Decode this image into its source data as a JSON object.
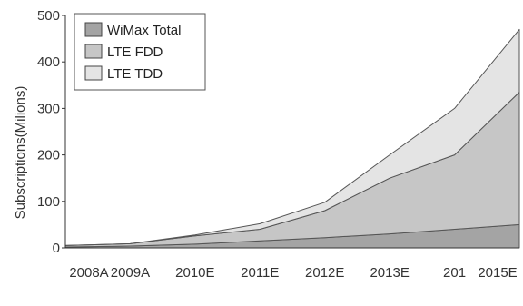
{
  "chart_data": {
    "type": "area",
    "stacked": true,
    "categories": [
      "2008A",
      "2009A",
      "2010E",
      "2011E",
      "2012E",
      "2013E",
      "201",
      "2015E"
    ],
    "series": [
      {
        "name": "WiMax Total",
        "values": [
          2,
          4,
          8,
          15,
          22,
          30,
          40,
          50
        ]
      },
      {
        "name": "LTE FDD",
        "values": [
          3,
          5,
          18,
          25,
          58,
          120,
          160,
          285
        ]
      },
      {
        "name": "LTE TDD",
        "values": [
          0,
          0,
          2,
          12,
          18,
          50,
          100,
          135
        ]
      }
    ],
    "title": "",
    "xlabel": "",
    "ylabel": "Subscriptions(Milions)",
    "ylim": [
      0,
      500
    ],
    "yticks": [
      "0",
      "100",
      "200",
      "300",
      "400",
      "500"
    ],
    "grid": false,
    "legend_position": "top-left",
    "colors": {
      "WiMax Total": "#a4a4a4",
      "LTE FDD": "#c6c6c6",
      "LTE TDD": "#e4e4e4",
      "stroke": "#555555",
      "axis": "#333333"
    }
  }
}
